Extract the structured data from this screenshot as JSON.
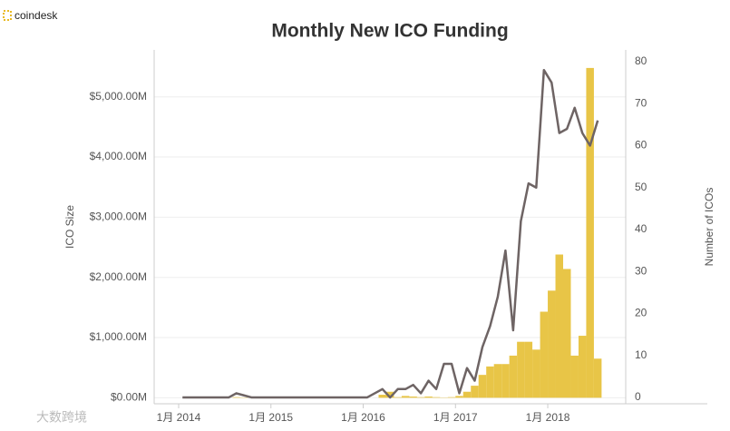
{
  "brand": "coindesk",
  "watermark": "大数跨境",
  "chart_data": {
    "type": "bar-line",
    "title": "Monthly New ICO Funding",
    "ylabel": "ICO Size",
    "y2label": "Number of ICOs",
    "categories": [
      "1月 2014",
      null,
      null,
      null,
      null,
      null,
      null,
      null,
      null,
      null,
      null,
      null,
      "1月 2015",
      null,
      null,
      null,
      null,
      null,
      null,
      null,
      null,
      null,
      null,
      null,
      "1月 2016",
      null,
      null,
      null,
      null,
      null,
      null,
      null,
      null,
      null,
      null,
      null,
      "1月 2017",
      null,
      null,
      null,
      null,
      null,
      null,
      null,
      null,
      null,
      null,
      null,
      "1月 2018",
      null,
      null,
      null,
      null,
      null,
      null
    ],
    "series": [
      {
        "name": "ICO Size",
        "kind": "bar",
        "color": "#e8c547",
        "values": [
          0,
          0,
          0,
          0,
          0,
          0,
          0,
          10,
          5,
          0,
          0,
          0,
          0,
          0,
          0,
          0,
          0,
          0,
          0,
          0,
          0,
          0,
          0,
          0,
          0,
          0,
          50,
          100,
          10,
          30,
          20,
          10,
          20,
          10,
          5,
          10,
          30,
          100,
          200,
          380,
          520,
          560,
          560,
          700,
          930,
          930,
          800,
          1430,
          1780,
          2380,
          2140,
          700,
          1030,
          5480,
          650
        ]
      },
      {
        "name": "Number of ICOs",
        "kind": "line",
        "axis": "y2",
        "color": "#6e6464",
        "values": [
          0,
          0,
          0,
          0,
          0,
          0,
          0,
          1,
          0.5,
          0,
          0,
          0,
          0,
          0,
          0,
          0,
          0,
          0,
          0,
          0,
          0,
          0,
          0,
          0,
          0,
          1,
          2,
          0,
          2,
          2,
          3,
          1,
          4,
          2,
          8,
          8,
          1,
          7,
          4,
          12,
          17,
          24,
          35,
          16,
          42,
          51,
          50,
          78,
          75,
          63,
          64,
          69,
          63,
          60,
          66
        ]
      }
    ],
    "ylim": [
      -100,
      5780
    ],
    "yticks": [
      {
        "value": 0,
        "label": "$0.00M"
      },
      {
        "value": 1000,
        "label": "$1,000.00M"
      },
      {
        "value": 2000,
        "label": "$2,000.00M"
      },
      {
        "value": 3000,
        "label": "$3,000.00M"
      },
      {
        "value": 4000,
        "label": "$4,000.00M"
      },
      {
        "value": 5000,
        "label": "$5,000.00M"
      }
    ],
    "y2lim": [
      -1.5,
      82.8
    ],
    "y2ticks": [
      0,
      10,
      20,
      30,
      40,
      50,
      60,
      70,
      80
    ],
    "grid": true
  }
}
